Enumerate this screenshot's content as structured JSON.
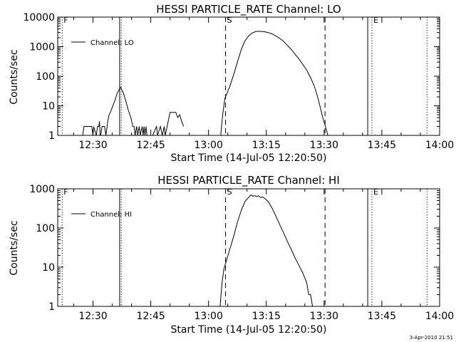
{
  "footer": {
    "timestamp": "3-Apr-2010 21:51"
  },
  "chart_data": [
    {
      "type": "line",
      "title": "HESSI PARTICLE_RATE Channel: LO",
      "xlabel": "Start Time (14-Jul-05 12:20:50)",
      "ylabel": "Counts/sec",
      "yscale": "log",
      "xlim": [
        "12:20:50",
        "14:00:00"
      ],
      "ylim": [
        1,
        10000
      ],
      "x_ticks": [
        "12:30",
        "12:45",
        "13:00",
        "13:15",
        "13:30",
        "13:45",
        "14:00"
      ],
      "y_ticks": [
        "1",
        "10",
        "100",
        "1000",
        "10000"
      ],
      "legend": {
        "position": "top-left",
        "entries": [
          "Channel: LO"
        ]
      },
      "markers": [
        {
          "label": "F",
          "time": "12:22:00",
          "style": "dotted"
        },
        {
          "label": "",
          "time": "12:36:55",
          "style": "solid"
        },
        {
          "label": "",
          "time": "12:37:20",
          "style": "dotted"
        },
        {
          "label": "S",
          "time": "13:04:25",
          "style": "dashed"
        },
        {
          "label": "",
          "time": "13:30:15",
          "style": "dashed"
        },
        {
          "label": "",
          "time": "13:41:20",
          "style": "solid"
        },
        {
          "label": "E",
          "time": "13:42:25",
          "style": "dotted"
        },
        {
          "label": "",
          "time": "13:56:45",
          "style": "dotted"
        }
      ],
      "series": [
        {
          "name": "Channel: LO",
          "segments": [
            [
              [
                "12:27:20",
                1
              ],
              [
                "12:27:40",
                2
              ],
              [
                "12:29:40",
                2
              ],
              [
                "12:30:00",
                1
              ],
              [
                "12:30:10",
                2
              ],
              [
                "12:30:50",
                1
              ],
              [
                "12:31:10",
                2
              ],
              [
                "12:31:30",
                2
              ],
              [
                "12:31:40",
                3
              ],
              [
                "12:31:50",
                1
              ],
              [
                "12:32:00",
                1
              ],
              [
                "12:32:20",
                2
              ],
              [
                "12:33:00",
                2
              ],
              [
                "12:33:20",
                1
              ],
              [
                "12:33:50",
                3
              ],
              [
                "12:34:10",
                5
              ],
              [
                "12:34:30",
                6
              ],
              [
                "12:35:00",
                9
              ],
              [
                "12:35:40",
                15
              ],
              [
                "12:36:20",
                28
              ],
              [
                "12:37:10",
                42
              ],
              [
                "12:37:50",
                28
              ],
              [
                "12:38:30",
                15
              ],
              [
                "12:39:10",
                7
              ],
              [
                "12:39:50",
                4
              ],
              [
                "12:40:20",
                2
              ],
              [
                "12:40:40",
                2
              ],
              [
                "12:40:55",
                1
              ],
              [
                "12:41:20",
                2
              ],
              [
                "12:41:35",
                1
              ],
              [
                "12:42:00",
                2
              ],
              [
                "12:42:15",
                1
              ],
              [
                "12:42:45",
                2
              ],
              [
                "12:43:00",
                1
              ],
              [
                "12:43:15",
                2
              ],
              [
                "12:43:30",
                1
              ],
              [
                "12:43:45",
                2
              ],
              [
                "12:44:00",
                1
              ]
            ],
            [
              [
                "12:45:30",
                1
              ],
              [
                "12:46:30",
                2
              ],
              [
                "12:46:45",
                1
              ],
              [
                "12:47:30",
                2
              ],
              [
                "12:48:00",
                1
              ],
              [
                "12:48:30",
                2
              ],
              [
                "12:48:45",
                1
              ],
              [
                "12:49:15",
                2
              ],
              [
                "12:50:00",
                6
              ],
              [
                "12:51:30",
                6
              ],
              [
                "12:52:00",
                4
              ],
              [
                "12:52:30",
                5
              ],
              [
                "12:53:00",
                3
              ],
              [
                "12:53:30",
                2
              ]
            ],
            [
              [
                "13:03:10",
                1
              ],
              [
                "13:03:40",
                5
              ],
              [
                "13:04:15",
                18
              ],
              [
                "13:04:50",
                27
              ],
              [
                "13:05:30",
                45
              ],
              [
                "13:06:30",
                110
              ],
              [
                "13:07:30",
                300
              ],
              [
                "13:08:30",
                800
              ],
              [
                "13:09:30",
                1600
              ],
              [
                "13:10:30",
                2400
              ],
              [
                "13:11:30",
                3000
              ],
              [
                "13:12:30",
                3300
              ],
              [
                "13:13:30",
                3300
              ],
              [
                "13:14:30",
                3200
              ],
              [
                "13:15:30",
                3000
              ],
              [
                "13:16:30",
                2700
              ],
              [
                "13:17:30",
                2300
              ],
              [
                "13:18:30",
                1900
              ],
              [
                "13:19:30",
                1500
              ],
              [
                "13:20:30",
                1100
              ],
              [
                "13:21:30",
                800
              ],
              [
                "13:22:30",
                550
              ],
              [
                "13:23:30",
                380
              ],
              [
                "13:24:30",
                250
              ],
              [
                "13:25:30",
                160
              ],
              [
                "13:26:30",
                90
              ],
              [
                "13:27:30",
                45
              ],
              [
                "13:28:20",
                20
              ],
              [
                "13:29:00",
                9
              ],
              [
                "13:29:40",
                4
              ],
              [
                "13:30:20",
                2
              ],
              [
                "13:31:00",
                1
              ]
            ]
          ]
        }
      ]
    },
    {
      "type": "line",
      "title": "HESSI PARTICLE_RATE Channel: HI",
      "xlabel": "Start Time (14-Jul-05 12:20:50)",
      "ylabel": "Counts/sec",
      "yscale": "log",
      "xlim": [
        "12:20:50",
        "14:00:00"
      ],
      "ylim": [
        1,
        1000
      ],
      "x_ticks": [
        "12:30",
        "12:45",
        "13:00",
        "13:15",
        "13:30",
        "13:45",
        "14:00"
      ],
      "y_ticks": [
        "1",
        "10",
        "100",
        "1000"
      ],
      "legend": {
        "position": "top-left",
        "entries": [
          "Channel: HI"
        ]
      },
      "markers": [
        {
          "label": "F",
          "time": "12:22:00",
          "style": "dotted"
        },
        {
          "label": "",
          "time": "12:36:55",
          "style": "solid"
        },
        {
          "label": "",
          "time": "12:37:20",
          "style": "dotted"
        },
        {
          "label": "S",
          "time": "13:04:25",
          "style": "dashed"
        },
        {
          "label": "",
          "time": "13:30:15",
          "style": "dashed"
        },
        {
          "label": "",
          "time": "13:41:20",
          "style": "solid"
        },
        {
          "label": "E",
          "time": "13:42:25",
          "style": "dotted"
        },
        {
          "label": "",
          "time": "13:56:45",
          "style": "dotted"
        }
      ],
      "series": [
        {
          "name": "Channel: HI",
          "segments": [
            [
              [
                "13:03:00",
                1
              ],
              [
                "13:03:30",
                4
              ],
              [
                "13:04:00",
                9
              ],
              [
                "13:04:40",
                15
              ],
              [
                "13:05:30",
                28
              ],
              [
                "13:06:30",
                60
              ],
              [
                "13:07:30",
                140
              ],
              [
                "13:08:30",
                280
              ],
              [
                "13:09:30",
                480
              ],
              [
                "13:10:30",
                620
              ],
              [
                "13:11:00",
                700
              ],
              [
                "13:11:30",
                650
              ],
              [
                "13:12:00",
                670
              ],
              [
                "13:12:30",
                640
              ],
              [
                "13:13:00",
                660
              ],
              [
                "13:13:30",
                600
              ],
              [
                "13:14:00",
                620
              ],
              [
                "13:14:30",
                580
              ],
              [
                "13:15:30",
                470
              ],
              [
                "13:16:30",
                320
              ],
              [
                "13:17:30",
                200
              ],
              [
                "13:18:30",
                120
              ],
              [
                "13:19:30",
                75
              ],
              [
                "13:20:30",
                45
              ],
              [
                "13:21:30",
                28
              ],
              [
                "13:22:30",
                17
              ],
              [
                "13:23:30",
                11
              ],
              [
                "13:24:30",
                7
              ],
              [
                "13:25:30",
                4
              ],
              [
                "13:26:00",
                2
              ],
              [
                "13:26:30",
                2
              ],
              [
                "13:27:00",
                1
              ]
            ]
          ]
        }
      ]
    }
  ]
}
